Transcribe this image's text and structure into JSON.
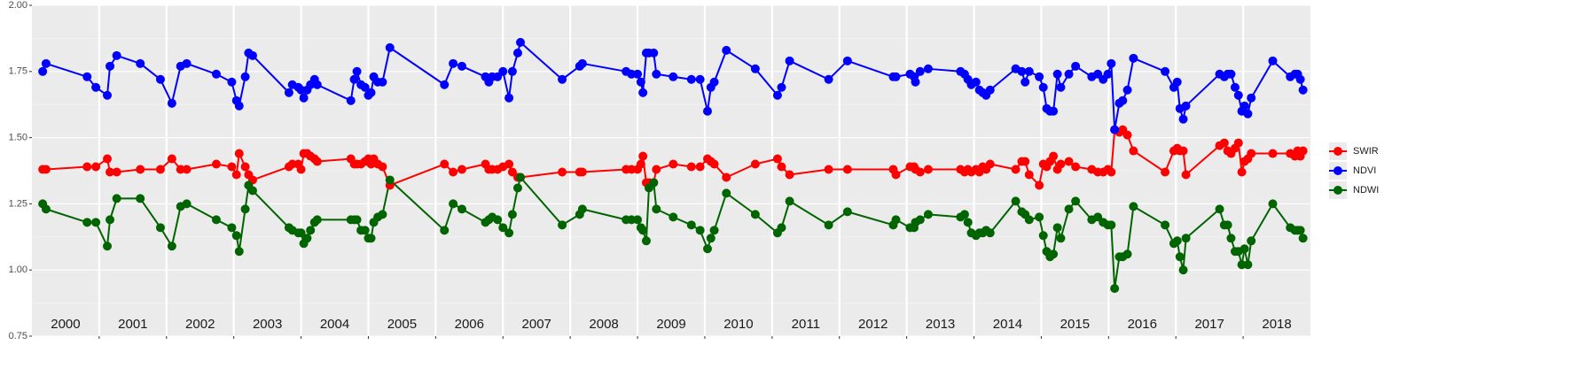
{
  "chart_data": {
    "type": "line",
    "x": [
      2000.16,
      2000.21,
      2000.82,
      2000.95,
      2001.12,
      2001.16,
      2001.26,
      2001.61,
      2001.91,
      2002.08,
      2002.21,
      2002.3,
      2002.74,
      2002.97,
      2003.04,
      2003.08,
      2003.17,
      2003.22,
      2003.28,
      2003.82,
      2003.87,
      2003.96,
      2004.0,
      2004.04,
      2004.09,
      2004.14,
      2004.2,
      2004.24,
      2004.74,
      2004.79,
      2004.83,
      2004.89,
      2004.95,
      2005.0,
      2005.04,
      2005.08,
      2005.14,
      2005.21,
      2005.32,
      2006.13,
      2006.26,
      2006.39,
      2006.74,
      2006.79,
      2006.84,
      2006.92,
      2007.0,
      2007.09,
      2007.14,
      2007.22,
      2007.26,
      2007.88,
      2008.14,
      2008.18,
      2008.83,
      2008.91,
      2009.0,
      2009.05,
      2009.08,
      2009.13,
      2009.17,
      2009.24,
      2009.28,
      2009.53,
      2009.8,
      2009.93,
      2010.04,
      2010.09,
      2010.14,
      2010.32,
      2010.75,
      2011.08,
      2011.14,
      2011.26,
      2011.84,
      2012.12,
      2012.8,
      2012.84,
      2013.05,
      2013.11,
      2013.13,
      2013.2,
      2013.32,
      2013.8,
      2013.86,
      2013.91,
      2013.96,
      2014.03,
      2014.08,
      2014.13,
      2014.18,
      2014.24,
      2014.62,
      2014.71,
      2014.76,
      2014.82,
      2014.97,
      2015.03,
      2015.08,
      2015.13,
      2015.18,
      2015.24,
      2015.29,
      2015.41,
      2015.51,
      2015.75,
      2015.84,
      2015.92,
      2015.99,
      2016.04,
      2016.09,
      2016.16,
      2016.21,
      2016.28,
      2016.37,
      2016.84,
      2016.97,
      2017.02,
      2017.06,
      2017.11,
      2017.15,
      2017.65,
      2017.72,
      2017.77,
      2017.82,
      2017.88,
      2017.93,
      2017.98,
      2018.02,
      2018.07,
      2018.12,
      2018.44,
      2018.7,
      2018.77,
      2018.81,
      2018.85,
      2018.89
    ],
    "series": [
      {
        "name": "SWIR",
        "color": "#ff0000",
        "values": [
          1.38,
          1.38,
          1.39,
          1.39,
          1.42,
          1.37,
          1.37,
          1.38,
          1.38,
          1.42,
          1.38,
          1.38,
          1.4,
          1.39,
          1.36,
          1.44,
          1.39,
          1.36,
          1.34,
          1.39,
          1.4,
          1.4,
          1.38,
          1.44,
          1.44,
          1.43,
          1.42,
          1.41,
          1.42,
          1.4,
          1.4,
          1.4,
          1.41,
          1.42,
          1.4,
          1.42,
          1.4,
          1.39,
          1.32,
          1.4,
          1.37,
          1.38,
          1.4,
          1.38,
          1.38,
          1.38,
          1.39,
          1.4,
          1.37,
          1.35,
          1.35,
          1.37,
          1.37,
          1.37,
          1.38,
          1.38,
          1.38,
          1.4,
          1.43,
          1.33,
          1.33,
          1.33,
          1.38,
          1.4,
          1.39,
          1.39,
          1.42,
          1.41,
          1.4,
          1.35,
          1.4,
          1.42,
          1.39,
          1.36,
          1.38,
          1.38,
          1.38,
          1.36,
          1.39,
          1.39,
          1.38,
          1.37,
          1.38,
          1.38,
          1.37,
          1.38,
          1.37,
          1.38,
          1.37,
          1.39,
          1.38,
          1.4,
          1.38,
          1.41,
          1.41,
          1.36,
          1.32,
          1.4,
          1.39,
          1.41,
          1.43,
          1.38,
          1.4,
          1.41,
          1.39,
          1.38,
          1.37,
          1.37,
          1.38,
          1.37,
          1.53,
          1.52,
          1.53,
          1.51,
          1.45,
          1.37,
          1.45,
          1.46,
          1.45,
          1.45,
          1.36,
          1.47,
          1.48,
          1.45,
          1.44,
          1.46,
          1.48,
          1.37,
          1.41,
          1.42,
          1.44,
          1.44,
          1.44,
          1.43,
          1.45,
          1.43,
          1.45
        ]
      },
      {
        "name": "NDVI",
        "color": "#0000ff",
        "values": [
          1.75,
          1.78,
          1.73,
          1.69,
          1.66,
          1.77,
          1.81,
          1.78,
          1.72,
          1.63,
          1.77,
          1.78,
          1.74,
          1.71,
          1.64,
          1.62,
          1.73,
          1.82,
          1.81,
          1.67,
          1.7,
          1.69,
          1.68,
          1.65,
          1.68,
          1.7,
          1.72,
          1.7,
          1.64,
          1.72,
          1.75,
          1.7,
          1.69,
          1.66,
          1.67,
          1.73,
          1.71,
          1.71,
          1.84,
          1.7,
          1.78,
          1.77,
          1.73,
          1.71,
          1.73,
          1.73,
          1.75,
          1.65,
          1.75,
          1.82,
          1.86,
          1.72,
          1.77,
          1.78,
          1.75,
          1.74,
          1.74,
          1.71,
          1.67,
          1.82,
          1.82,
          1.82,
          1.74,
          1.73,
          1.72,
          1.72,
          1.6,
          1.69,
          1.71,
          1.83,
          1.76,
          1.66,
          1.69,
          1.79,
          1.72,
          1.79,
          1.73,
          1.73,
          1.74,
          1.73,
          1.71,
          1.75,
          1.76,
          1.75,
          1.74,
          1.72,
          1.7,
          1.71,
          1.68,
          1.67,
          1.66,
          1.68,
          1.76,
          1.75,
          1.71,
          1.75,
          1.73,
          1.69,
          1.61,
          1.6,
          1.6,
          1.74,
          1.69,
          1.74,
          1.77,
          1.73,
          1.74,
          1.72,
          1.74,
          1.78,
          1.53,
          1.63,
          1.64,
          1.68,
          1.8,
          1.75,
          1.69,
          1.71,
          1.61,
          1.57,
          1.62,
          1.74,
          1.73,
          1.74,
          1.74,
          1.69,
          1.66,
          1.6,
          1.62,
          1.59,
          1.65,
          1.79,
          1.73,
          1.74,
          1.74,
          1.72,
          1.68
        ]
      },
      {
        "name": "NDWI",
        "color": "#006400",
        "values": [
          1.25,
          1.23,
          1.18,
          1.18,
          1.09,
          1.19,
          1.27,
          1.27,
          1.16,
          1.09,
          1.24,
          1.25,
          1.19,
          1.16,
          1.13,
          1.07,
          1.23,
          1.32,
          1.3,
          1.16,
          1.15,
          1.14,
          1.14,
          1.1,
          1.12,
          1.15,
          1.18,
          1.19,
          1.19,
          1.19,
          1.19,
          1.15,
          1.15,
          1.12,
          1.12,
          1.18,
          1.2,
          1.21,
          1.34,
          1.15,
          1.25,
          1.23,
          1.18,
          1.19,
          1.2,
          1.19,
          1.16,
          1.14,
          1.21,
          1.31,
          1.35,
          1.17,
          1.21,
          1.23,
          1.19,
          1.19,
          1.19,
          1.16,
          1.15,
          1.11,
          1.31,
          1.33,
          1.23,
          1.2,
          1.17,
          1.15,
          1.08,
          1.12,
          1.15,
          1.29,
          1.21,
          1.14,
          1.16,
          1.26,
          1.17,
          1.22,
          1.17,
          1.19,
          1.16,
          1.16,
          1.18,
          1.19,
          1.21,
          1.2,
          1.21,
          1.18,
          1.14,
          1.13,
          1.14,
          1.14,
          1.15,
          1.14,
          1.26,
          1.22,
          1.21,
          1.19,
          1.2,
          1.13,
          1.07,
          1.05,
          1.06,
          1.16,
          1.12,
          1.23,
          1.26,
          1.19,
          1.2,
          1.18,
          1.17,
          1.17,
          0.93,
          1.05,
          1.05,
          1.06,
          1.24,
          1.17,
          1.1,
          1.11,
          1.05,
          1.0,
          1.12,
          1.23,
          1.17,
          1.17,
          1.12,
          1.07,
          1.07,
          1.02,
          1.08,
          1.02,
          1.11,
          1.25,
          1.16,
          1.15,
          1.15,
          1.15,
          1.12
        ]
      }
    ],
    "xlim": [
      2000,
      2019
    ],
    "xticks": [
      2001,
      2002,
      2003,
      2004,
      2005,
      2006,
      2007,
      2008,
      2009,
      2010,
      2011,
      2012,
      2013,
      2014,
      2015,
      2016,
      2017,
      2018
    ],
    "year_labels": [
      {
        "value": 2000.5,
        "label": "2000"
      },
      {
        "value": 2001.5,
        "label": "2001"
      },
      {
        "value": 2002.5,
        "label": "2002"
      },
      {
        "value": 2003.5,
        "label": "2003"
      },
      {
        "value": 2004.5,
        "label": "2004"
      },
      {
        "value": 2005.5,
        "label": "2005"
      },
      {
        "value": 2006.5,
        "label": "2006"
      },
      {
        "value": 2007.5,
        "label": "2007"
      },
      {
        "value": 2008.5,
        "label": "2008"
      },
      {
        "value": 2009.5,
        "label": "2009"
      },
      {
        "value": 2010.5,
        "label": "2010"
      },
      {
        "value": 2011.5,
        "label": "2011"
      },
      {
        "value": 2012.5,
        "label": "2012"
      },
      {
        "value": 2013.5,
        "label": "2013"
      },
      {
        "value": 2014.5,
        "label": "2014"
      },
      {
        "value": 2015.5,
        "label": "2015"
      },
      {
        "value": 2016.5,
        "label": "2016"
      },
      {
        "value": 2017.5,
        "label": "2017"
      },
      {
        "value": 2018.5,
        "label": "2018"
      }
    ],
    "ylim": [
      0.75,
      2.0
    ],
    "yticks": [
      {
        "value": 0.75,
        "label": "0.75"
      },
      {
        "value": 1,
        "label": "1.00"
      },
      {
        "value": 1.25,
        "label": "1.25"
      },
      {
        "value": 1.5,
        "label": "1.50"
      },
      {
        "value": 1.75,
        "label": "1.75"
      },
      {
        "value": 2,
        "label": "2.00"
      }
    ],
    "grid": true,
    "legend": "right"
  }
}
